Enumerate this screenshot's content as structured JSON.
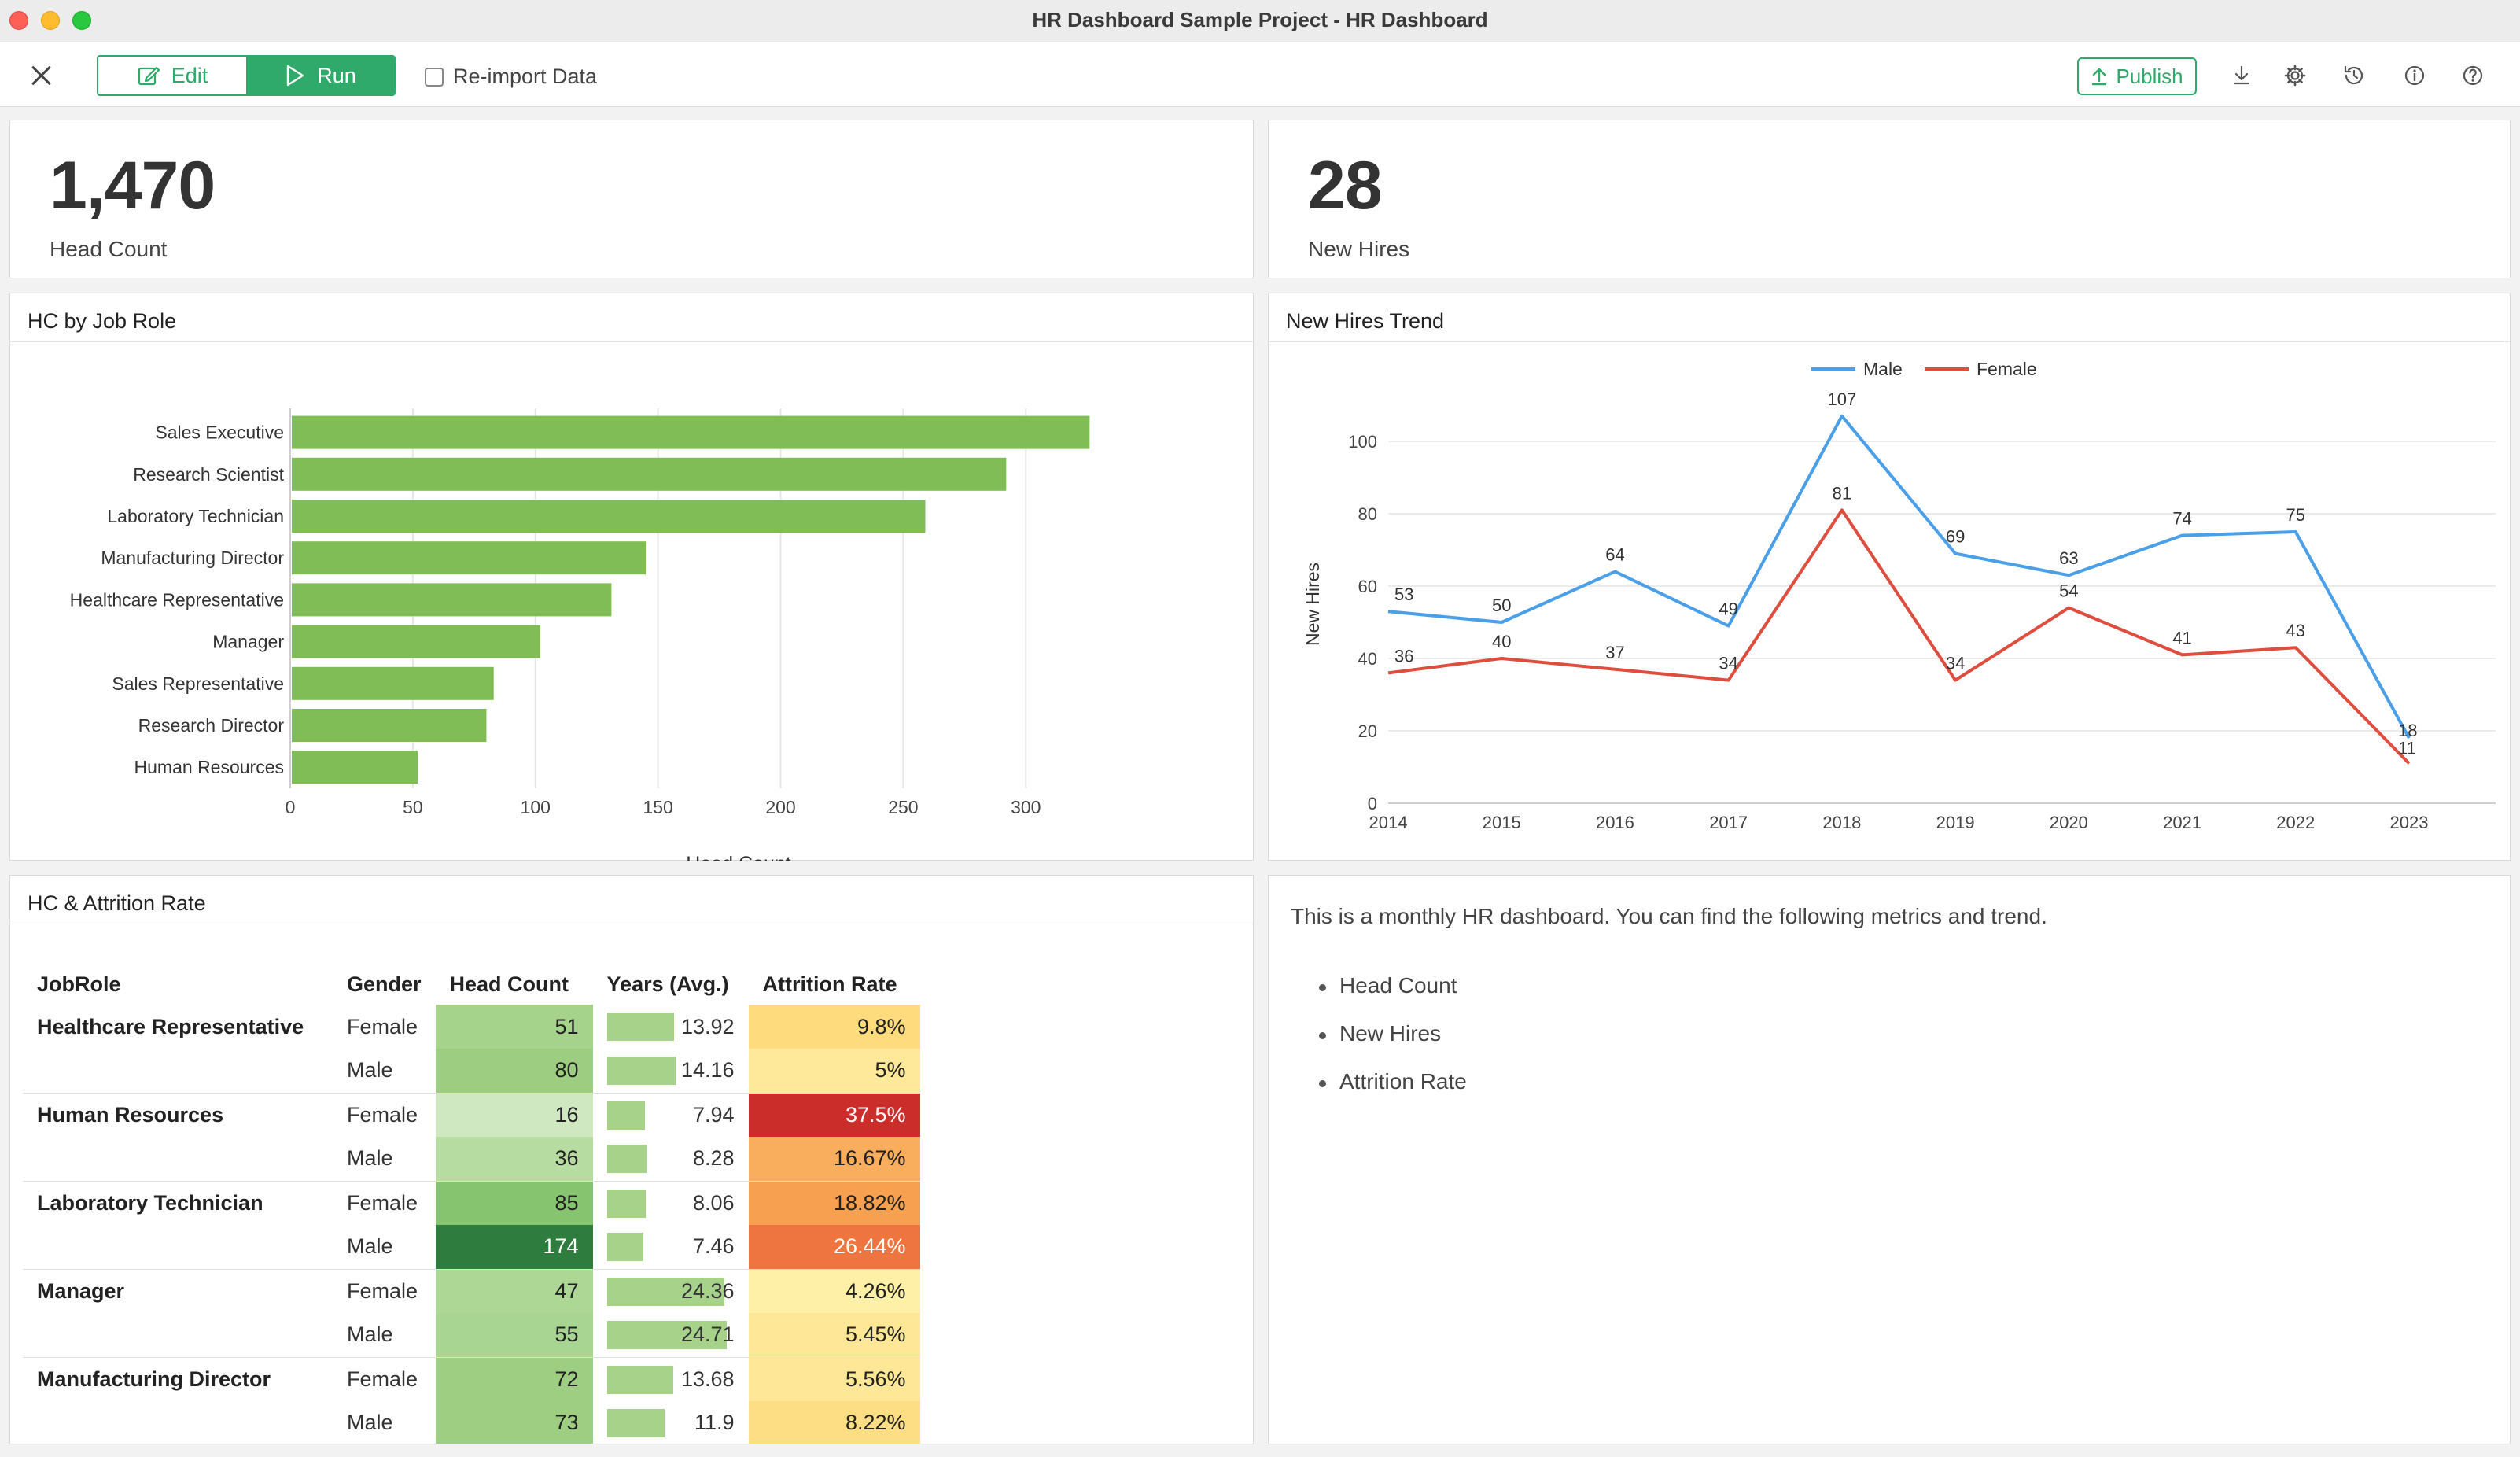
{
  "window": {
    "title": "HR Dashboard Sample Project - HR Dashboard"
  },
  "toolbar": {
    "edit_label": "Edit",
    "run_label": "Run",
    "reimport_label": "Re-import Data",
    "publish_label": "Publish",
    "accent": "#2faa6a"
  },
  "kpis": {
    "head_count": {
      "value": "1,470",
      "label": "Head Count"
    },
    "new_hires": {
      "value": "28",
      "label": "New Hires"
    }
  },
  "hc_by_role": {
    "title": "HC by Job Role",
    "chart_data": {
      "type": "bar",
      "orientation": "horizontal",
      "categories": [
        "Sales Executive",
        "Research Scientist",
        "Laboratory Technician",
        "Manufacturing Director",
        "Healthcare Representative",
        "Manager",
        "Sales Representative",
        "Research Director",
        "Human Resources"
      ],
      "values": [
        326,
        292,
        259,
        145,
        131,
        102,
        83,
        80,
        52
      ],
      "xlabel": "Head Count",
      "ylabel": "",
      "xlim": [
        0,
        340
      ],
      "xticks": [
        0,
        50,
        100,
        150,
        200,
        250,
        300
      ],
      "color": "#80bd57",
      "grid": true
    }
  },
  "new_hires_trend": {
    "title": "New Hires Trend",
    "chart_data": {
      "type": "line",
      "x": [
        2014,
        2015,
        2016,
        2017,
        2018,
        2019,
        2020,
        2021,
        2022,
        2023
      ],
      "series": [
        {
          "name": "Male",
          "color": "#4a9fe8",
          "values": [
            53,
            50,
            64,
            49,
            107,
            69,
            63,
            74,
            75,
            18
          ]
        },
        {
          "name": "Female",
          "color": "#de4e3f",
          "values": [
            36,
            40,
            37,
            34,
            81,
            34,
            54,
            41,
            43,
            11
          ]
        }
      ],
      "xlabel": "",
      "ylabel": "New Hires",
      "ylim": [
        0,
        110
      ],
      "yticks": [
        0,
        20,
        40,
        60,
        80,
        100
      ],
      "legend": "top-center",
      "grid": true
    }
  },
  "attrition": {
    "title": "HC & Attrition Rate",
    "headers": {
      "role": "JobRole",
      "gender": "Gender",
      "hc": "Head Count",
      "years": "Years (Avg.)",
      "rate": "Attrition Rate"
    },
    "rows": [
      {
        "role": "Healthcare Representative",
        "gender": "Female",
        "hc": "51",
        "years": "13.92",
        "years_value": 13.92,
        "rate": "9.8%",
        "hc_color": "#a5d38c",
        "rate_color": "#fedb7c",
        "hc_text": "#222",
        "rate_text": "#222"
      },
      {
        "role": "",
        "gender": "Male",
        "hc": "80",
        "years": "14.16",
        "years_value": 14.16,
        "rate": "5%",
        "hc_color": "#9ccd81",
        "rate_color": "#fee99a",
        "hc_text": "#222",
        "rate_text": "#222"
      },
      {
        "role": "Human Resources",
        "gender": "Female",
        "hc": "16",
        "years": "7.94",
        "years_value": 7.94,
        "rate": "37.5%",
        "hc_color": "#cfe8c1",
        "rate_color": "#cb2d2a",
        "hc_text": "#222",
        "rate_text": "#ffffff"
      },
      {
        "role": "",
        "gender": "Male",
        "hc": "36",
        "years": "8.28",
        "years_value": 8.28,
        "rate": "16.67%",
        "hc_color": "#b6dca2",
        "rate_color": "#f9ae5d",
        "hc_text": "#222",
        "rate_text": "#222"
      },
      {
        "role": "Laboratory Technician",
        "gender": "Female",
        "hc": "85",
        "years": "8.06",
        "years_value": 8.06,
        "rate": "18.82%",
        "hc_color": "#87c46f",
        "rate_color": "#f7a04f",
        "hc_text": "#222",
        "rate_text": "#222"
      },
      {
        "role": "",
        "gender": "Male",
        "hc": "174",
        "years": "7.46",
        "years_value": 7.46,
        "rate": "26.44%",
        "hc_color": "#2e7d3e",
        "rate_color": "#ee7440",
        "hc_text": "#ffffff",
        "rate_text": "#ffffff"
      },
      {
        "role": "Manager",
        "gender": "Female",
        "hc": "47",
        "years": "24.36",
        "years_value": 24.36,
        "rate": "4.26%",
        "hc_color": "#acd795",
        "rate_color": "#fff0a8",
        "hc_text": "#222",
        "rate_text": "#222"
      },
      {
        "role": "",
        "gender": "Male",
        "hc": "55",
        "years": "24.71",
        "years_value": 24.71,
        "rate": "5.45%",
        "hc_color": "#a8d592",
        "rate_color": "#fee797",
        "hc_text": "#222",
        "rate_text": "#222"
      },
      {
        "role": "Manufacturing Director",
        "gender": "Female",
        "hc": "72",
        "years": "13.68",
        "years_value": 13.68,
        "rate": "5.56%",
        "hc_color": "#9dce82",
        "rate_color": "#fee797",
        "hc_text": "#222",
        "rate_text": "#222"
      },
      {
        "role": "",
        "gender": "Male",
        "hc": "73",
        "years": "11.9",
        "years_value": 11.9,
        "rate": "8.22%",
        "hc_color": "#9dce82",
        "rate_color": "#fede85",
        "hc_text": "#222",
        "rate_text": "#222"
      }
    ],
    "years_max": 24.71
  },
  "description": {
    "intro": "This is a monthly HR dashboard. You can find the following metrics and trend.",
    "items": [
      "Head Count",
      "New Hires",
      "Attrition Rate"
    ]
  }
}
